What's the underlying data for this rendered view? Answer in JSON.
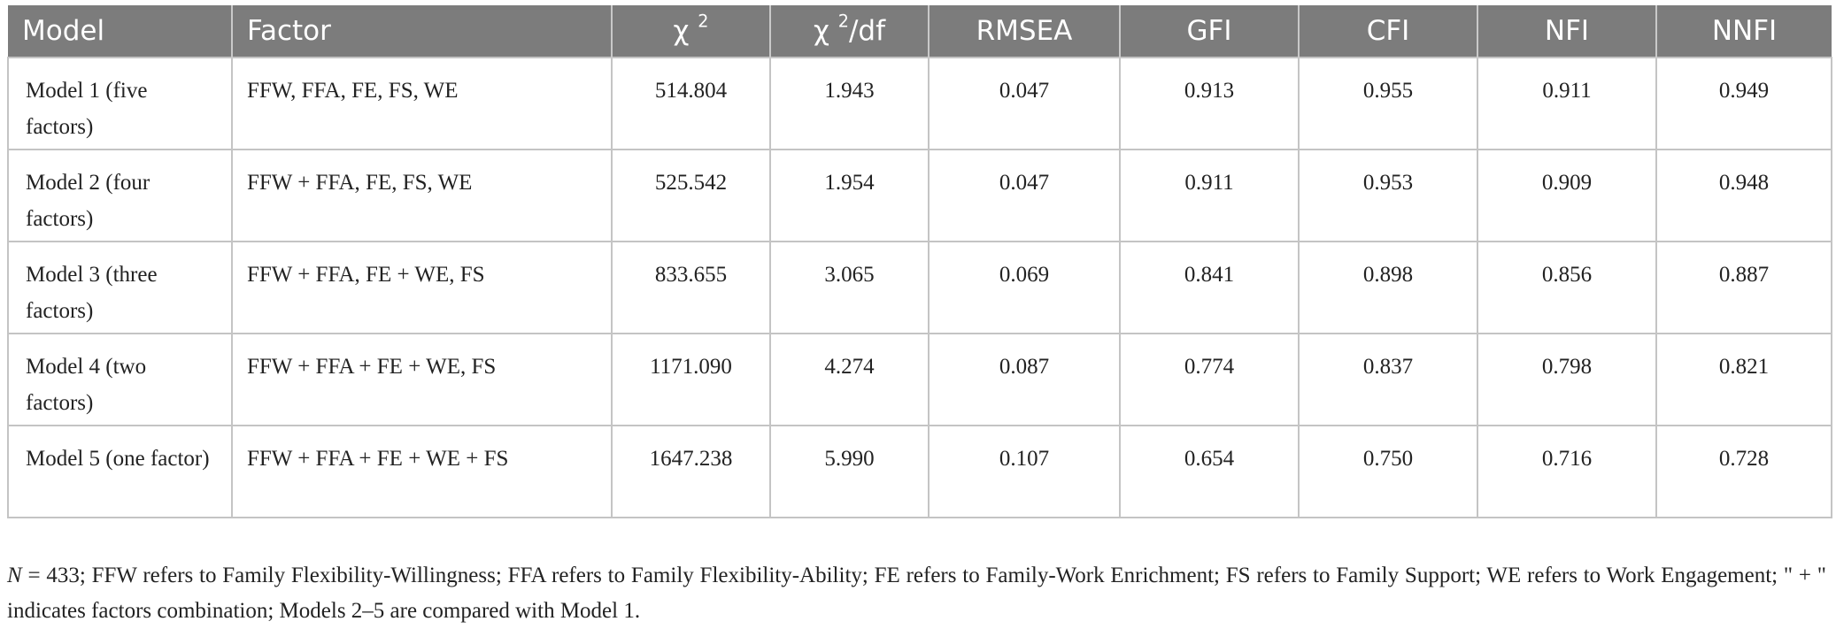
{
  "table": {
    "headers": {
      "model": "Model",
      "factor": "Factor",
      "chi2_symbol": "χ",
      "chi2_sup": "2",
      "chi2df_symbol": "χ",
      "chi2df_sup": "2",
      "chi2df_suffix": "/df",
      "rmsea": "RMSEA",
      "gfi": "GFI",
      "cfi": "CFI",
      "nfi": "NFI",
      "nnfi": "NNFI"
    },
    "rows": [
      {
        "model": "Model 1 (five factors)",
        "factor": "FFW, FFA, FE, FS, WE",
        "chi2": "514.804",
        "chi2df": "1.943",
        "rmsea": "0.047",
        "gfi": "0.913",
        "cfi": "0.955",
        "nfi": "0.911",
        "nnfi": "0.949"
      },
      {
        "model": "Model 2 (four factors)",
        "factor": "FFW + FFA, FE, FS, WE",
        "chi2": "525.542",
        "chi2df": "1.954",
        "rmsea": "0.047",
        "gfi": "0.911",
        "cfi": "0.953",
        "nfi": "0.909",
        "nnfi": "0.948"
      },
      {
        "model": "Model 3 (three factors)",
        "factor": "FFW + FFA, FE + WE, FS",
        "chi2": "833.655",
        "chi2df": "3.065",
        "rmsea": "0.069",
        "gfi": "0.841",
        "cfi": "0.898",
        "nfi": "0.856",
        "nnfi": "0.887"
      },
      {
        "model": "Model 4 (two factors)",
        "factor": "FFW + FFA + FE + WE, FS",
        "chi2": "1171.090",
        "chi2df": "4.274",
        "rmsea": "0.087",
        "gfi": "0.774",
        "cfi": "0.837",
        "nfi": "0.798",
        "nnfi": "0.821"
      },
      {
        "model": "Model 5 (one factor)",
        "factor": "FFW + FFA + FE + WE + FS",
        "chi2": "1647.238",
        "chi2df": "5.990",
        "rmsea": "0.107",
        "gfi": "0.654",
        "cfi": "0.750",
        "nfi": "0.716",
        "nnfi": "0.728"
      }
    ]
  },
  "note": {
    "n_symbol": "N",
    "text": " = 433; FFW refers to Family Flexibility-Willingness; FFA refers to Family Flexibility-Ability; FE refers to Family-Work Enrichment; FS refers to Family Support; WE refers to Work Engagement; \" + \" indicates factors combination; Models 2–5 are compared with Model 1."
  },
  "colors": {
    "header_bg": "#7c7c7c",
    "header_text": "#ffffff",
    "grid": "#c4c4c4"
  }
}
